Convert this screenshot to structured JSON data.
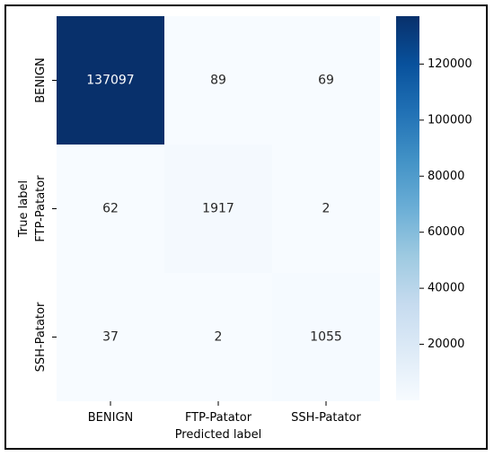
{
  "chart_data": {
    "type": "heatmap",
    "title": "",
    "xlabel": "Predicted label",
    "ylabel": "True label",
    "x_categories": [
      "BENIGN",
      "FTP-Patator",
      "SSH-Patator"
    ],
    "y_categories": [
      "BENIGN",
      "FTP-Patator",
      "SSH-Patator"
    ],
    "values": [
      [
        137097,
        89,
        69
      ],
      [
        62,
        1917,
        2
      ],
      [
        37,
        2,
        1055
      ]
    ],
    "colormap": "Blues",
    "colorbar": {
      "range": [
        2,
        137097
      ],
      "ticks": [
        20000,
        40000,
        60000,
        80000,
        100000,
        120000
      ],
      "tick_labels": [
        "20000",
        "40000",
        "60000",
        "80000",
        "100000",
        "120000"
      ]
    },
    "colors": {
      "high": "#08306b",
      "low": "#f7fbff",
      "text_dark": "#262626",
      "text_light": "#ffffff"
    }
  }
}
